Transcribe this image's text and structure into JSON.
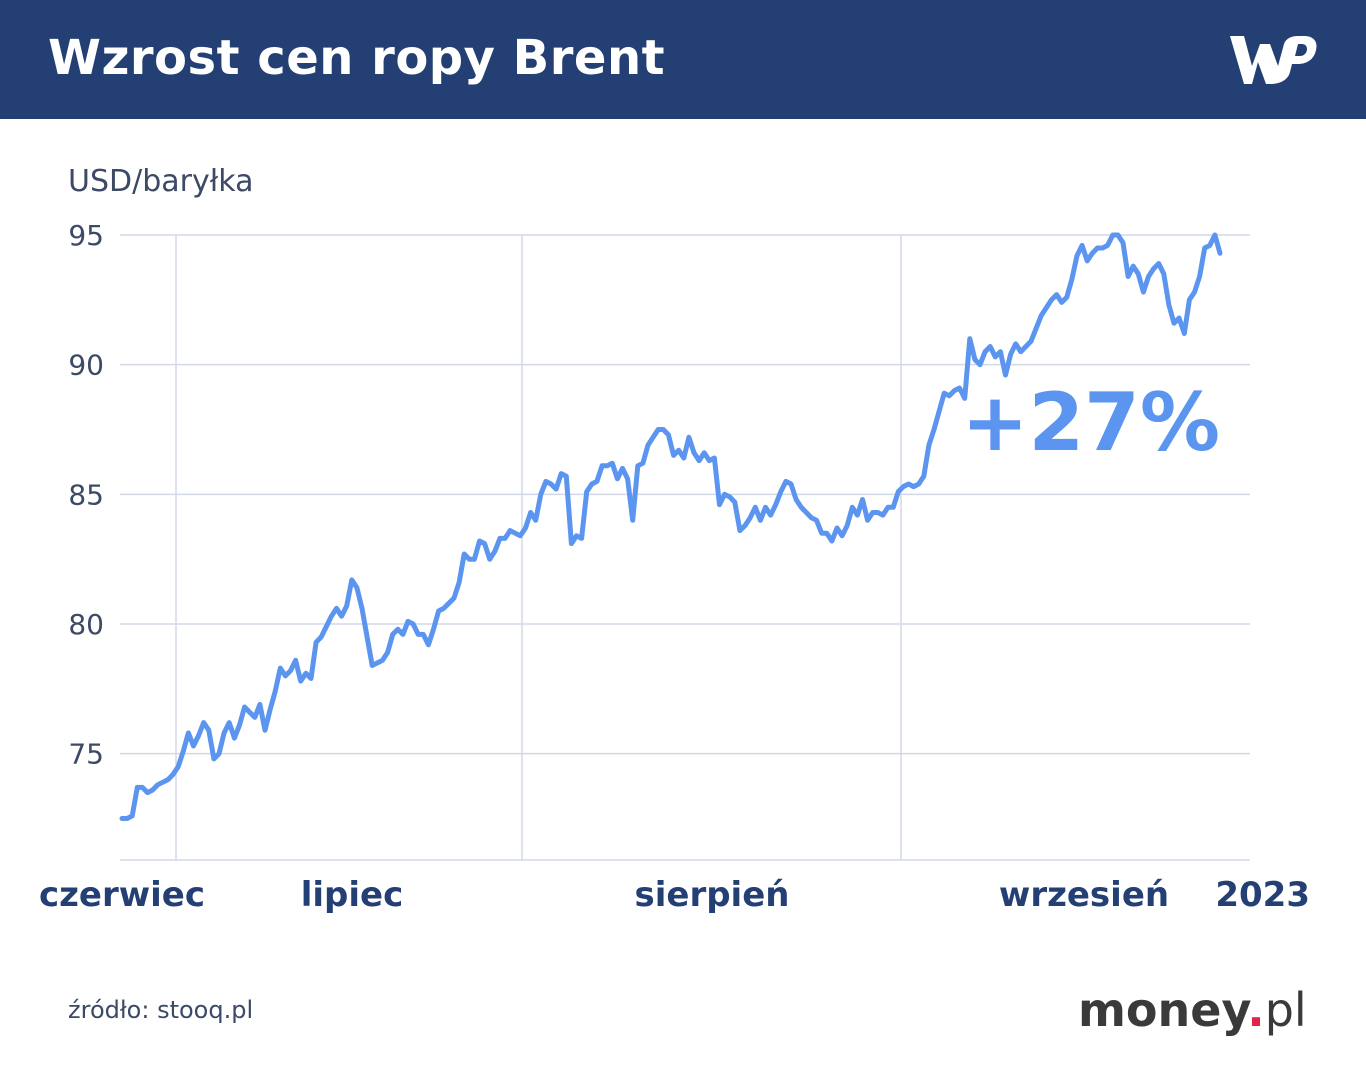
{
  "header": {
    "title": "Wzrost cen ropy Brent",
    "logo_text": "WP",
    "background": "#233f73"
  },
  "chart_data": {
    "type": "line",
    "title": "Wzrost cen ropy Brent",
    "ylabel": "USD/baryłka",
    "ylim": [
      70.9,
      95
    ],
    "yticks": [
      75,
      80,
      85,
      90,
      95
    ],
    "x_month_labels": [
      "czerwiec",
      "lipiec",
      "sierpień",
      "wrzesień"
    ],
    "x_year_label": "2023",
    "annotation": "+27%",
    "grid": true,
    "line_color": "#5b95f0",
    "series": [
      {
        "values": [
          72.5,
          72.5,
          72.6,
          73.7,
          73.7,
          73.5,
          73.6,
          73.8,
          73.9,
          74.0,
          74.2,
          74.5,
          75.1,
          75.8,
          75.3,
          75.7,
          76.2,
          75.9,
          74.8,
          75.0,
          75.8,
          76.2,
          75.6,
          76.1,
          76.8,
          76.6,
          76.4,
          76.9,
          75.9,
          76.7,
          77.4,
          78.3,
          78.0,
          78.2,
          78.6,
          77.8,
          78.1,
          77.9,
          79.3,
          79.5,
          79.9,
          80.3,
          80.6,
          80.3,
          80.7,
          81.7,
          81.4,
          80.6,
          79.5,
          78.4,
          78.5,
          78.6,
          78.9,
          79.6,
          79.8,
          79.6,
          80.1,
          80.0,
          79.6,
          79.6,
          79.2,
          79.8,
          80.5,
          80.6,
          80.8,
          81.0,
          81.6,
          82.7,
          82.5,
          82.5,
          83.2,
          83.1,
          82.5,
          82.8,
          83.3,
          83.3,
          83.6,
          83.5,
          83.4,
          83.7,
          84.3,
          84.0,
          85.0,
          85.5,
          85.4,
          85.2,
          85.8,
          85.7,
          83.1,
          83.4,
          83.3,
          85.1,
          85.4,
          85.5,
          86.1,
          86.1,
          86.2,
          85.6,
          86.0,
          85.6,
          84.0,
          86.1,
          86.2,
          86.9,
          87.2,
          87.5,
          87.5,
          87.3,
          86.5,
          86.7,
          86.4,
          87.2,
          86.6,
          86.3,
          86.6,
          86.3,
          86.4,
          84.6,
          85.0,
          84.9,
          84.7,
          83.6,
          83.8,
          84.1,
          84.5,
          84.0,
          84.5,
          84.2,
          84.6,
          85.1,
          85.5,
          85.4,
          84.8,
          84.5,
          84.3,
          84.1,
          84.0,
          83.5,
          83.5,
          83.2,
          83.7,
          83.4,
          83.8,
          84.5,
          84.2,
          84.8,
          84.0,
          84.3,
          84.3,
          84.2,
          84.5,
          84.5,
          85.1,
          85.3,
          85.4,
          85.3,
          85.4,
          85.7,
          86.9,
          87.5,
          88.2,
          88.9,
          88.8,
          89.0,
          89.1,
          88.7,
          91.0,
          90.2,
          90.0,
          90.5,
          90.7,
          90.3,
          90.5,
          89.6,
          90.4,
          90.8,
          90.5,
          90.7,
          90.9,
          91.4,
          91.9,
          92.2,
          92.5,
          92.7,
          92.4,
          92.6,
          93.3,
          94.2,
          94.6,
          94.0,
          94.3,
          94.5,
          94.5,
          94.6,
          95.0,
          95.0,
          94.7,
          93.4,
          93.8,
          93.5,
          92.8,
          93.4,
          93.7,
          93.9,
          93.5,
          92.3,
          91.6,
          91.8,
          91.2,
          92.5,
          92.8,
          93.4,
          94.5,
          94.6,
          95.0,
          94.3
        ]
      }
    ]
  },
  "footer": {
    "source": "źródło: stooq.pl",
    "brand_main": "money",
    "brand_dot": ".",
    "brand_tld": "pl"
  }
}
